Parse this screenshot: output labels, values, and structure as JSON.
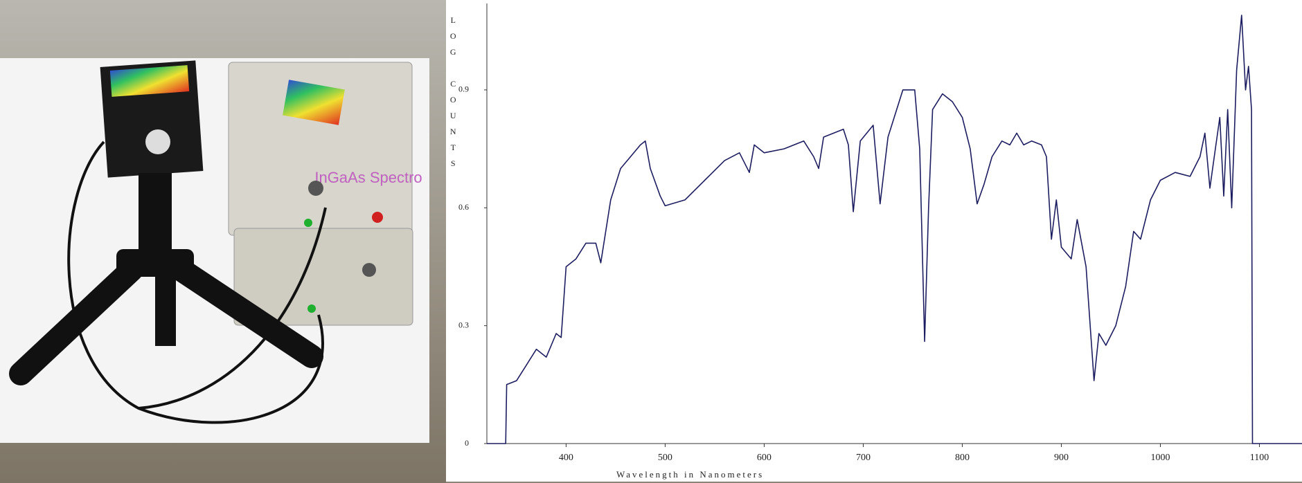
{
  "photo": {
    "device_label": "InGaAs Spectro"
  },
  "chart_data": {
    "type": "line",
    "xlabel": "Wavelength in Nanometers",
    "ylabel": "LOG COUNTS",
    "xlim": [
      320,
      1143
    ],
    "ylim": [
      0,
      1.12
    ],
    "xticks": [
      400,
      500,
      600,
      700,
      800,
      900,
      1000,
      1100
    ],
    "yticks": [
      0,
      0.3,
      0.6,
      0.9
    ],
    "series": [
      {
        "color": "#1c1c60",
        "x": [
          320,
          339,
          340,
          350,
          360,
          370,
          380,
          390,
          395,
          400,
          410,
          420,
          430,
          435,
          445,
          455,
          465,
          475,
          480,
          485,
          495,
          500,
          520,
          540,
          560,
          575,
          585,
          590,
          600,
          620,
          640,
          650,
          655,
          660,
          680,
          685,
          690,
          697,
          710,
          717,
          725,
          740,
          752,
          757,
          762,
          766,
          770,
          780,
          790,
          800,
          808,
          815,
          822,
          830,
          840,
          848,
          855,
          862,
          870,
          880,
          885,
          890,
          895,
          900,
          910,
          916,
          925,
          933,
          938,
          945,
          955,
          965,
          973,
          980,
          990,
          1000,
          1015,
          1030,
          1040,
          1045,
          1050,
          1055,
          1060,
          1064,
          1068,
          1072,
          1077,
          1082,
          1086,
          1089,
          1092,
          1093,
          1143
        ],
        "values": [
          0,
          0,
          0.15,
          0.16,
          0.2,
          0.24,
          0.22,
          0.28,
          0.27,
          0.45,
          0.47,
          0.51,
          0.51,
          0.46,
          0.62,
          0.7,
          0.73,
          0.76,
          0.77,
          0.7,
          0.63,
          0.605,
          0.62,
          0.67,
          0.72,
          0.74,
          0.69,
          0.76,
          0.74,
          0.75,
          0.77,
          0.73,
          0.7,
          0.78,
          0.8,
          0.76,
          0.59,
          0.77,
          0.81,
          0.61,
          0.78,
          0.9,
          0.9,
          0.75,
          0.26,
          0.6,
          0.85,
          0.89,
          0.87,
          0.83,
          0.75,
          0.61,
          0.66,
          0.73,
          0.77,
          0.76,
          0.79,
          0.76,
          0.77,
          0.76,
          0.73,
          0.52,
          0.62,
          0.5,
          0.47,
          0.57,
          0.45,
          0.16,
          0.28,
          0.25,
          0.3,
          0.4,
          0.54,
          0.52,
          0.62,
          0.67,
          0.69,
          0.68,
          0.73,
          0.79,
          0.65,
          0.74,
          0.83,
          0.63,
          0.85,
          0.6,
          0.95,
          1.09,
          0.9,
          0.96,
          0.85,
          0,
          0
        ]
      }
    ]
  }
}
